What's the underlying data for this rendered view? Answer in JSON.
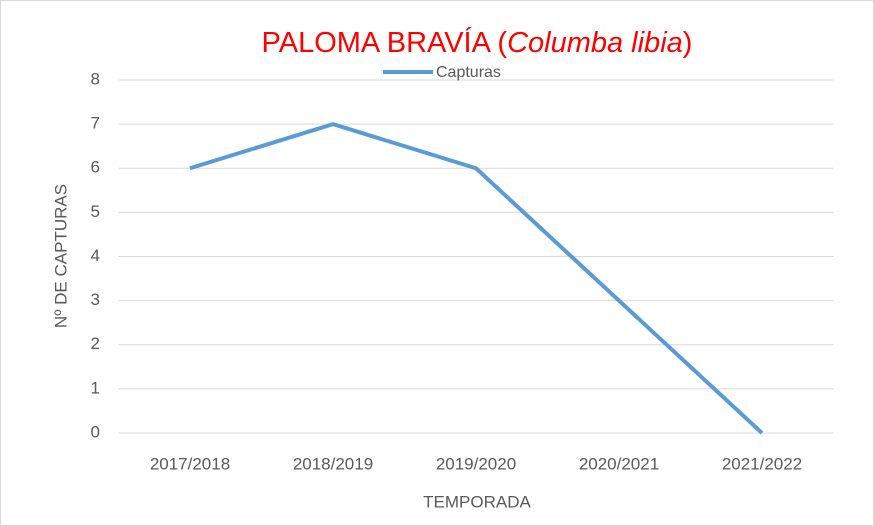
{
  "chart_data": {
    "type": "line",
    "title": [
      {
        "text": "PALOMA BRAVÍA (",
        "italic": false
      },
      {
        "text": "Columba libia",
        "italic": true
      },
      {
        "text": ")",
        "italic": false
      }
    ],
    "title_color": "#ff0000",
    "x_label": "TEMPORADA",
    "y_label": "Nº DE CAPTURAS",
    "categories": [
      "2017/2018",
      "2018/2019",
      "2019/2020",
      "2020/2021",
      "2021/2022"
    ],
    "series": [
      {
        "name": "Capturas",
        "color": "#5b9bd5",
        "values": [
          6,
          7,
          6,
          3,
          0
        ]
      }
    ],
    "ylim": [
      0,
      8
    ],
    "yticks": [
      0,
      1,
      2,
      3,
      4,
      5,
      6,
      7,
      8
    ],
    "grid": true,
    "legend": "top"
  }
}
